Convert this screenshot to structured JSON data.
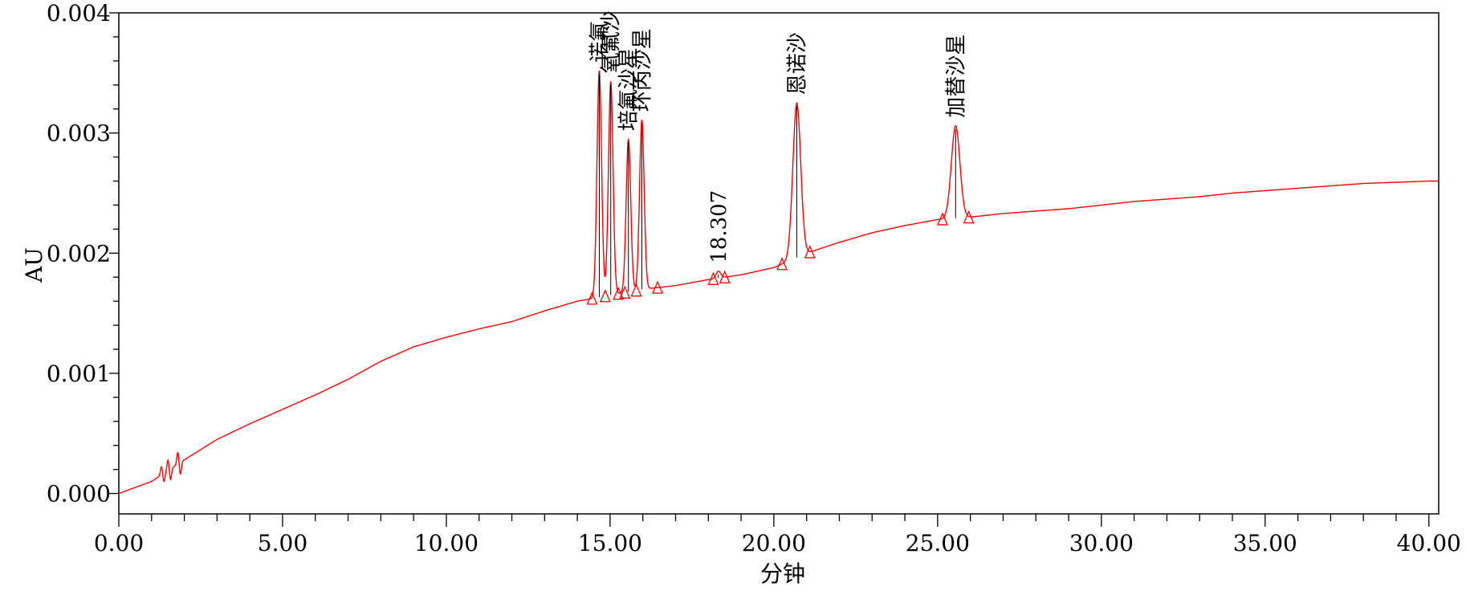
{
  "chart_data": {
    "type": "line",
    "title": "",
    "xlabel": "分钟",
    "ylabel": "AU",
    "xlim": [
      0,
      40.3
    ],
    "ylim": [
      -0.00017,
      0.004
    ],
    "x_ticks": [
      0,
      5,
      10,
      15,
      20,
      25,
      30,
      35,
      40
    ],
    "x_tick_labels": [
      "0.00",
      "5.00",
      "10.00",
      "15.00",
      "20.00",
      "25.00",
      "30.00",
      "35.00",
      "40.00"
    ],
    "y_ticks": [
      0,
      0.001,
      0.002,
      0.003,
      0.004
    ],
    "y_tick_labels": [
      "0.000",
      "0.001",
      "0.002",
      "0.003",
      "0.004"
    ],
    "grid": false,
    "series": [
      {
        "color": "#ff0000",
        "baseline": [
          [
            0,
            0
          ],
          [
            1,
            0.0001
          ],
          [
            2,
            0.00028
          ],
          [
            3,
            0.00045
          ],
          [
            4,
            0.00058
          ],
          [
            5,
            0.0007
          ],
          [
            6,
            0.00082
          ],
          [
            7,
            0.00095
          ],
          [
            8,
            0.0011
          ],
          [
            9,
            0.00122
          ],
          [
            10,
            0.0013
          ],
          [
            11,
            0.00137
          ],
          [
            12,
            0.00143
          ],
          [
            13,
            0.00152
          ],
          [
            14,
            0.0016
          ],
          [
            15,
            0.00165
          ],
          [
            16,
            0.0017
          ],
          [
            17,
            0.00173
          ],
          [
            18,
            0.00178
          ],
          [
            19,
            0.00182
          ],
          [
            20,
            0.00188
          ],
          [
            21,
            0.002
          ],
          [
            22,
            0.00209
          ],
          [
            23,
            0.00217
          ],
          [
            24,
            0.00223
          ],
          [
            25,
            0.00228
          ],
          [
            26,
            0.0023
          ],
          [
            27,
            0.00233
          ],
          [
            28,
            0.00235
          ],
          [
            29,
            0.00237
          ],
          [
            30,
            0.0024
          ],
          [
            31,
            0.00243
          ],
          [
            32,
            0.00245
          ],
          [
            33,
            0.00247
          ],
          [
            34,
            0.0025
          ],
          [
            35,
            0.00252
          ],
          [
            36,
            0.00254
          ],
          [
            37,
            0.00256
          ],
          [
            38,
            0.00258
          ],
          [
            39,
            0.00259
          ],
          [
            40,
            0.0026
          ],
          [
            40.3,
            0.0026
          ]
        ],
        "wiggles": [
          {
            "x": 1.3,
            "y": 0.00014
          },
          {
            "x": 1.5,
            "y": 0.00018
          },
          {
            "x": 1.8,
            "y": 0.0002
          }
        ],
        "peaks": [
          {
            "rt": 14.67,
            "apex": 0.00352,
            "width": 0.07,
            "label": "诺氟"
          },
          {
            "rt": 15.02,
            "apex": 0.00343,
            "width": 0.07,
            "label": "氧氟沙"
          },
          {
            "rt": 15.56,
            "apex": 0.00295,
            "width": 0.07,
            "label": "培氟沙星"
          },
          {
            "rt": 15.97,
            "apex": 0.00311,
            "width": 0.07,
            "label": "环丙沙星"
          },
          {
            "rt": 18.307,
            "apex": 0.00185,
            "width": 0.07,
            "label": "18.307"
          },
          {
            "rt": 20.7,
            "apex": 0.00325,
            "width": 0.12,
            "label": "恩诺沙"
          },
          {
            "rt": 25.55,
            "apex": 0.00306,
            "width": 0.13,
            "label": "加替沙星"
          }
        ],
        "integration_markers": [
          14.45,
          14.85,
          15.25,
          15.45,
          15.8,
          16.45,
          18.15,
          18.5,
          20.25,
          21.1,
          25.15,
          25.95
        ]
      }
    ]
  }
}
